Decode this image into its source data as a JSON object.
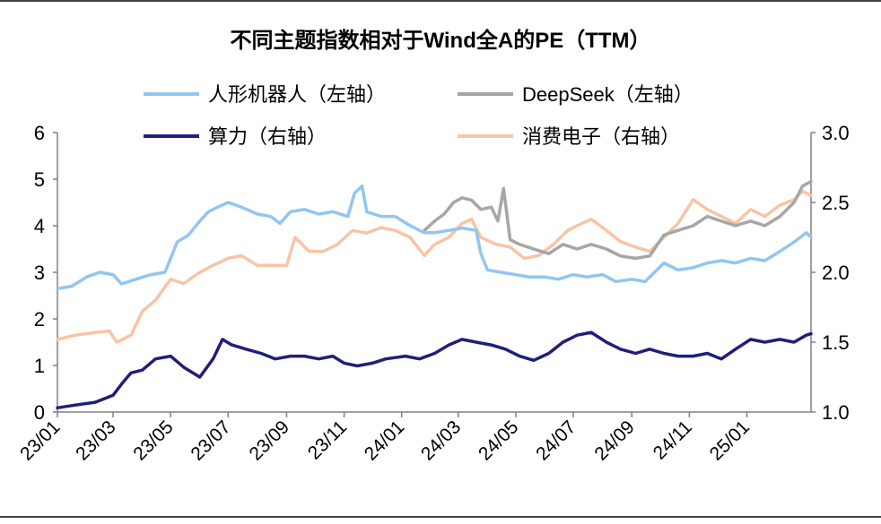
{
  "chart_data": {
    "type": "line",
    "title": "不同主题指数相对于Wind全A的PE（TTM）",
    "x_ticks": [
      "23/01",
      "23/03",
      "23/05",
      "23/07",
      "23/09",
      "23/11",
      "24/01",
      "24/03",
      "24/05",
      "24/07",
      "24/09",
      "24/11",
      "25/01"
    ],
    "x_range": [
      "2023-01-01",
      "2025-03-10"
    ],
    "y_left": {
      "range": [
        0,
        6
      ],
      "ticks": [
        "0",
        "1",
        "2",
        "3",
        "4",
        "5",
        "6"
      ]
    },
    "y_right": {
      "range": [
        1.0,
        3.0
      ],
      "ticks": [
        "1.0",
        "1.5",
        "2.0",
        "2.5",
        "3.0"
      ]
    },
    "grid": false,
    "legend_position": "top",
    "series": [
      {
        "name": "人形机器人（左轴）",
        "axis": "left",
        "color": "#93C5F2",
        "points": [
          [
            "2023-01-01",
            2.65
          ],
          [
            "2023-01-16",
            2.7
          ],
          [
            "2023-02-01",
            2.9
          ],
          [
            "2023-02-15",
            3.0
          ],
          [
            "2023-03-01",
            2.95
          ],
          [
            "2023-03-10",
            2.75
          ],
          [
            "2023-03-25",
            2.85
          ],
          [
            "2023-04-10",
            2.95
          ],
          [
            "2023-04-25",
            3.0
          ],
          [
            "2023-05-01",
            3.3
          ],
          [
            "2023-05-08",
            3.65
          ],
          [
            "2023-05-20",
            3.8
          ],
          [
            "2023-06-01",
            4.1
          ],
          [
            "2023-06-10",
            4.3
          ],
          [
            "2023-06-20",
            4.4
          ],
          [
            "2023-07-01",
            4.5
          ],
          [
            "2023-07-15",
            4.4
          ],
          [
            "2023-08-01",
            4.25
          ],
          [
            "2023-08-15",
            4.2
          ],
          [
            "2023-08-25",
            4.05
          ],
          [
            "2023-09-05",
            4.3
          ],
          [
            "2023-09-20",
            4.35
          ],
          [
            "2023-10-05",
            4.25
          ],
          [
            "2023-10-20",
            4.3
          ],
          [
            "2023-11-05",
            4.2
          ],
          [
            "2023-11-12",
            4.7
          ],
          [
            "2023-11-20",
            4.85
          ],
          [
            "2023-11-25",
            4.3
          ],
          [
            "2023-12-10",
            4.2
          ],
          [
            "2023-12-25",
            4.2
          ],
          [
            "2024-01-10",
            4.0
          ],
          [
            "2024-01-25",
            3.85
          ],
          [
            "2024-02-05",
            3.85
          ],
          [
            "2024-02-20",
            3.9
          ],
          [
            "2024-03-05",
            3.95
          ],
          [
            "2024-03-20",
            3.9
          ],
          [
            "2024-03-25",
            3.4
          ],
          [
            "2024-04-01",
            3.05
          ],
          [
            "2024-04-15",
            3.0
          ],
          [
            "2024-05-01",
            2.95
          ],
          [
            "2024-05-15",
            2.9
          ],
          [
            "2024-06-01",
            2.9
          ],
          [
            "2024-06-15",
            2.85
          ],
          [
            "2024-07-01",
            2.95
          ],
          [
            "2024-07-15",
            2.9
          ],
          [
            "2024-08-01",
            2.95
          ],
          [
            "2024-08-15",
            2.8
          ],
          [
            "2024-09-01",
            2.85
          ],
          [
            "2024-09-15",
            2.8
          ],
          [
            "2024-09-25",
            3.0
          ],
          [
            "2024-10-05",
            3.2
          ],
          [
            "2024-10-20",
            3.05
          ],
          [
            "2024-11-05",
            3.1
          ],
          [
            "2024-11-20",
            3.2
          ],
          [
            "2024-12-05",
            3.25
          ],
          [
            "2024-12-20",
            3.2
          ],
          [
            "2025-01-05",
            3.3
          ],
          [
            "2025-01-20",
            3.25
          ],
          [
            "2025-02-05",
            3.45
          ],
          [
            "2025-02-20",
            3.65
          ],
          [
            "2025-03-05",
            3.85
          ],
          [
            "2025-03-10",
            3.75
          ]
        ]
      },
      {
        "name": "DeepSeek（左轴）",
        "axis": "left",
        "color": "#A6A6A6",
        "points": [
          [
            "2024-01-25",
            3.9
          ],
          [
            "2024-02-05",
            4.1
          ],
          [
            "2024-02-15",
            4.25
          ],
          [
            "2024-02-25",
            4.5
          ],
          [
            "2024-03-05",
            4.6
          ],
          [
            "2024-03-15",
            4.55
          ],
          [
            "2024-03-25",
            4.35
          ],
          [
            "2024-04-05",
            4.4
          ],
          [
            "2024-04-12",
            4.1
          ],
          [
            "2024-04-18",
            4.8
          ],
          [
            "2024-04-25",
            3.7
          ],
          [
            "2024-05-05",
            3.6
          ],
          [
            "2024-05-20",
            3.5
          ],
          [
            "2024-06-05",
            3.4
          ],
          [
            "2024-06-20",
            3.6
          ],
          [
            "2024-07-05",
            3.5
          ],
          [
            "2024-07-20",
            3.6
          ],
          [
            "2024-08-05",
            3.5
          ],
          [
            "2024-08-20",
            3.35
          ],
          [
            "2024-09-05",
            3.3
          ],
          [
            "2024-09-20",
            3.35
          ],
          [
            "2024-10-05",
            3.8
          ],
          [
            "2024-10-20",
            3.9
          ],
          [
            "2024-11-05",
            4.0
          ],
          [
            "2024-11-20",
            4.2
          ],
          [
            "2024-12-05",
            4.1
          ],
          [
            "2024-12-20",
            4.0
          ],
          [
            "2025-01-05",
            4.1
          ],
          [
            "2025-01-20",
            4.0
          ],
          [
            "2025-02-05",
            4.2
          ],
          [
            "2025-02-20",
            4.5
          ],
          [
            "2025-03-01",
            4.85
          ],
          [
            "2025-03-10",
            4.95
          ]
        ]
      },
      {
        "name": "算力（右轴）",
        "axis": "right",
        "color": "#1F1F7A",
        "points": [
          [
            "2023-01-01",
            1.03
          ],
          [
            "2023-01-20",
            1.05
          ],
          [
            "2023-02-10",
            1.07
          ],
          [
            "2023-03-01",
            1.12
          ],
          [
            "2023-03-10",
            1.2
          ],
          [
            "2023-03-20",
            1.28
          ],
          [
            "2023-04-01",
            1.3
          ],
          [
            "2023-04-15",
            1.38
          ],
          [
            "2023-05-01",
            1.4
          ],
          [
            "2023-05-15",
            1.32
          ],
          [
            "2023-06-01",
            1.25
          ],
          [
            "2023-06-15",
            1.38
          ],
          [
            "2023-06-25",
            1.52
          ],
          [
            "2023-07-05",
            1.48
          ],
          [
            "2023-07-20",
            1.45
          ],
          [
            "2023-08-05",
            1.42
          ],
          [
            "2023-08-20",
            1.38
          ],
          [
            "2023-09-05",
            1.4
          ],
          [
            "2023-09-20",
            1.4
          ],
          [
            "2023-10-05",
            1.38
          ],
          [
            "2023-10-20",
            1.4
          ],
          [
            "2023-11-01",
            1.35
          ],
          [
            "2023-11-15",
            1.33
          ],
          [
            "2023-12-01",
            1.35
          ],
          [
            "2023-12-15",
            1.38
          ],
          [
            "2024-01-05",
            1.4
          ],
          [
            "2024-01-20",
            1.38
          ],
          [
            "2024-02-05",
            1.42
          ],
          [
            "2024-02-20",
            1.48
          ],
          [
            "2024-03-05",
            1.52
          ],
          [
            "2024-03-20",
            1.5
          ],
          [
            "2024-04-05",
            1.48
          ],
          [
            "2024-04-20",
            1.45
          ],
          [
            "2024-05-05",
            1.4
          ],
          [
            "2024-05-20",
            1.37
          ],
          [
            "2024-06-05",
            1.42
          ],
          [
            "2024-06-20",
            1.5
          ],
          [
            "2024-07-05",
            1.55
          ],
          [
            "2024-07-20",
            1.57
          ],
          [
            "2024-08-05",
            1.5
          ],
          [
            "2024-08-20",
            1.45
          ],
          [
            "2024-09-05",
            1.42
          ],
          [
            "2024-09-20",
            1.45
          ],
          [
            "2024-10-05",
            1.42
          ],
          [
            "2024-10-20",
            1.4
          ],
          [
            "2024-11-05",
            1.4
          ],
          [
            "2024-11-20",
            1.42
          ],
          [
            "2024-12-05",
            1.38
          ],
          [
            "2024-12-20",
            1.45
          ],
          [
            "2025-01-05",
            1.52
          ],
          [
            "2025-01-20",
            1.5
          ],
          [
            "2025-02-05",
            1.52
          ],
          [
            "2025-02-20",
            1.5
          ],
          [
            "2025-03-05",
            1.55
          ],
          [
            "2025-03-10",
            1.56
          ]
        ]
      },
      {
        "name": "消费电子（右轴）",
        "axis": "right",
        "color": "#F8C4A4",
        "points": [
          [
            "2023-01-01",
            1.52
          ],
          [
            "2023-01-20",
            1.55
          ],
          [
            "2023-02-10",
            1.57
          ],
          [
            "2023-02-25",
            1.58
          ],
          [
            "2023-03-05",
            1.5
          ],
          [
            "2023-03-20",
            1.55
          ],
          [
            "2023-04-01",
            1.72
          ],
          [
            "2023-04-15",
            1.8
          ],
          [
            "2023-05-01",
            1.95
          ],
          [
            "2023-05-15",
            1.92
          ],
          [
            "2023-06-01",
            2.0
          ],
          [
            "2023-06-15",
            2.05
          ],
          [
            "2023-07-01",
            2.1
          ],
          [
            "2023-07-15",
            2.12
          ],
          [
            "2023-08-01",
            2.05
          ],
          [
            "2023-08-15",
            2.05
          ],
          [
            "2023-09-01",
            2.05
          ],
          [
            "2023-09-10",
            2.25
          ],
          [
            "2023-09-25",
            2.15
          ],
          [
            "2023-10-10",
            2.15
          ],
          [
            "2023-10-25",
            2.2
          ],
          [
            "2023-11-10",
            2.3
          ],
          [
            "2023-11-25",
            2.28
          ],
          [
            "2023-12-10",
            2.32
          ],
          [
            "2023-12-25",
            2.3
          ],
          [
            "2024-01-10",
            2.25
          ],
          [
            "2024-01-25",
            2.12
          ],
          [
            "2024-02-05",
            2.2
          ],
          [
            "2024-02-20",
            2.25
          ],
          [
            "2024-03-05",
            2.35
          ],
          [
            "2024-03-15",
            2.38
          ],
          [
            "2024-03-25",
            2.25
          ],
          [
            "2024-04-10",
            2.2
          ],
          [
            "2024-04-25",
            2.18
          ],
          [
            "2024-05-10",
            2.1
          ],
          [
            "2024-05-25",
            2.12
          ],
          [
            "2024-06-10",
            2.2
          ],
          [
            "2024-06-25",
            2.3
          ],
          [
            "2024-07-10",
            2.35
          ],
          [
            "2024-07-20",
            2.38
          ],
          [
            "2024-08-05",
            2.3
          ],
          [
            "2024-08-20",
            2.22
          ],
          [
            "2024-09-05",
            2.18
          ],
          [
            "2024-09-20",
            2.15
          ],
          [
            "2024-10-05",
            2.25
          ],
          [
            "2024-10-20",
            2.35
          ],
          [
            "2024-11-05",
            2.52
          ],
          [
            "2024-11-20",
            2.45
          ],
          [
            "2024-12-05",
            2.4
          ],
          [
            "2024-12-20",
            2.35
          ],
          [
            "2025-01-05",
            2.45
          ],
          [
            "2025-01-20",
            2.4
          ],
          [
            "2025-02-05",
            2.48
          ],
          [
            "2025-02-20",
            2.52
          ],
          [
            "2025-03-01",
            2.58
          ],
          [
            "2025-03-10",
            2.55
          ]
        ]
      }
    ]
  }
}
